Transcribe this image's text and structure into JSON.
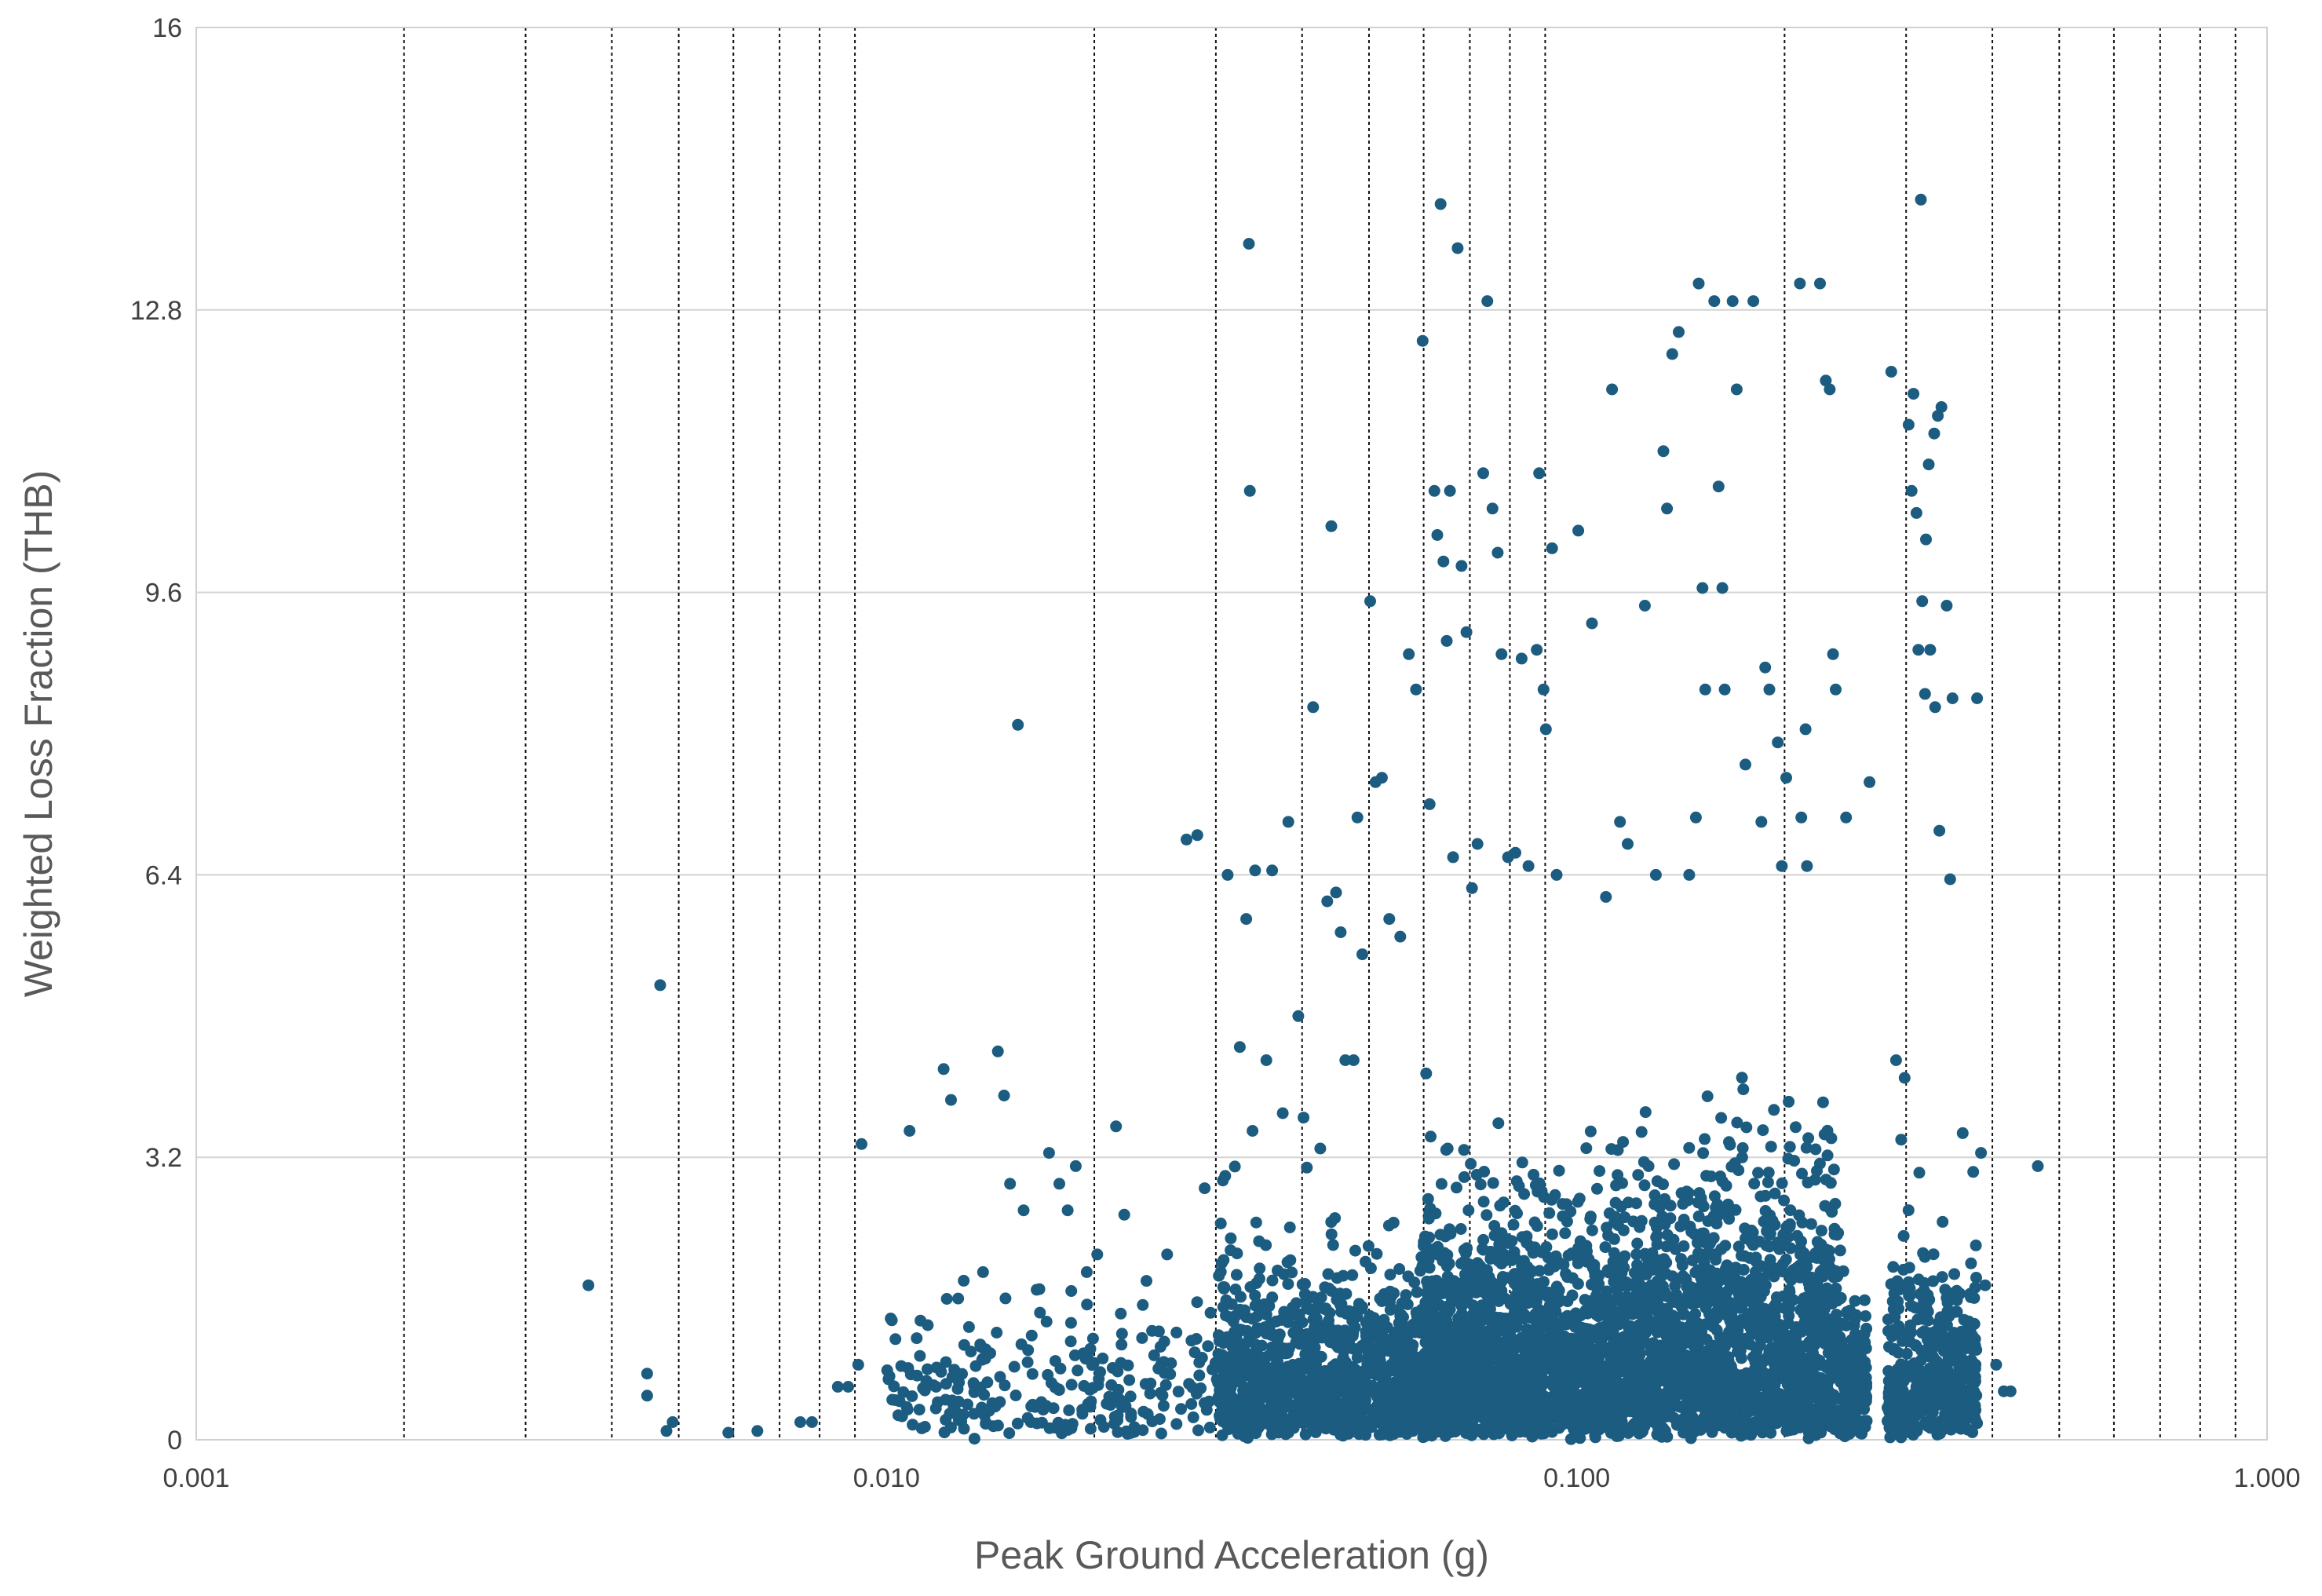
{
  "chart_data": {
    "type": "scatter",
    "xlabel": "Peak Ground Acceleration (g)",
    "ylabel": "Weighted Loss Fraction (THB)",
    "x_scale": "log",
    "xlim": [
      0.001,
      1.0
    ],
    "ylim": [
      0,
      16
    ],
    "x_ticks": [
      0.001,
      0.01,
      0.1,
      1.0
    ],
    "x_tick_labels": [
      "0.001",
      "0.010",
      "0.100",
      "1.000"
    ],
    "y_ticks": [
      0,
      3.2,
      6.4,
      9.6,
      12.8,
      16
    ],
    "y_tick_labels": [
      "0",
      "3.2",
      "6.4",
      "9.6",
      "12.8",
      "16"
    ],
    "x_minor_gridlines": [
      0.002,
      0.003,
      0.004,
      0.005,
      0.006,
      0.007,
      0.008,
      0.009,
      0.02,
      0.03,
      0.04,
      0.05,
      0.06,
      0.07,
      0.08,
      0.09,
      0.2,
      0.3,
      0.4,
      0.5,
      0.6,
      0.7,
      0.8,
      0.9
    ],
    "x_gridline_style": "dotted",
    "y_grid": true,
    "legend": "none",
    "marker_color": "#1b5c80",
    "points": [
      [
        0.0037,
        1.75
      ],
      [
        0.0045,
        0.75
      ],
      [
        0.0045,
        0.5
      ],
      [
        0.0047,
        5.15
      ],
      [
        0.0048,
        0.1
      ],
      [
        0.0049,
        0.2
      ],
      [
        0.0059,
        0.08
      ],
      [
        0.0065,
        0.1
      ],
      [
        0.0075,
        0.2
      ],
      [
        0.0078,
        0.2
      ],
      [
        0.0085,
        0.6
      ],
      [
        0.0088,
        0.6
      ],
      [
        0.0091,
        0.85
      ],
      [
        0.0092,
        3.35
      ],
      [
        0.0108,
        3.5
      ],
      [
        0.0112,
        1.35
      ],
      [
        0.0121,
        4.2
      ],
      [
        0.0124,
        3.85
      ],
      [
        0.0118,
        0.6
      ],
      [
        0.0127,
        1.6
      ],
      [
        0.0131,
        0.4
      ],
      [
        0.0138,
        1.9
      ],
      [
        0.0145,
        4.4
      ],
      [
        0.0148,
        3.9
      ],
      [
        0.0151,
        2.9
      ],
      [
        0.0155,
        8.1
      ],
      [
        0.0158,
        2.6
      ],
      [
        0.0165,
        1.7
      ],
      [
        0.0172,
        3.25
      ],
      [
        0.0178,
        2.9
      ],
      [
        0.0183,
        2.6
      ],
      [
        0.0188,
        3.1
      ],
      [
        0.0195,
        1.9
      ],
      [
        0.0202,
        2.1
      ],
      [
        0.0215,
        3.55
      ],
      [
        0.0221,
        2.55
      ],
      [
        0.0238,
        1.8
      ],
      [
        0.0255,
        2.1
      ],
      [
        0.0272,
        6.8
      ],
      [
        0.0282,
        6.85
      ],
      [
        0.0289,
        2.85
      ],
      [
        0.0305,
        2.45
      ],
      [
        0.0312,
        6.4
      ],
      [
        0.0325,
        4.45
      ],
      [
        0.0332,
        5.9
      ],
      [
        0.0335,
        13.55
      ],
      [
        0.0336,
        10.75
      ],
      [
        0.0339,
        3.5
      ],
      [
        0.0342,
        6.45
      ],
      [
        0.0355,
        4.3
      ],
      [
        0.0362,
        6.45
      ],
      [
        0.0375,
        3.7
      ],
      [
        0.0382,
        7.0
      ],
      [
        0.0395,
        4.8
      ],
      [
        0.0402,
        3.65
      ],
      [
        0.0415,
        8.3
      ],
      [
        0.0425,
        3.3
      ],
      [
        0.0435,
        6.1
      ],
      [
        0.0441,
        10.35
      ],
      [
        0.0448,
        6.2
      ],
      [
        0.0455,
        5.75
      ],
      [
        0.0462,
        4.3
      ],
      [
        0.0475,
        4.3
      ],
      [
        0.0481,
        7.05
      ],
      [
        0.0489,
        5.5
      ],
      [
        0.0502,
        9.5
      ],
      [
        0.0511,
        7.45
      ],
      [
        0.0522,
        7.5
      ],
      [
        0.0535,
        5.9
      ],
      [
        0.0555,
        5.7
      ],
      [
        0.0571,
        8.9
      ],
      [
        0.0585,
        8.5
      ],
      [
        0.0598,
        12.45
      ],
      [
        0.0605,
        4.15
      ],
      [
        0.0612,
        7.2
      ],
      [
        0.0622,
        10.75
      ],
      [
        0.0628,
        10.25
      ],
      [
        0.0635,
        14.0
      ],
      [
        0.0641,
        9.95
      ],
      [
        0.0648,
        9.05
      ],
      [
        0.0655,
        10.75
      ],
      [
        0.0662,
        6.6
      ],
      [
        0.0672,
        13.5
      ],
      [
        0.0681,
        9.9
      ],
      [
        0.0692,
        9.15
      ],
      [
        0.0705,
        6.25
      ],
      [
        0.0718,
        6.75
      ],
      [
        0.0732,
        10.95
      ],
      [
        0.0742,
        12.9
      ],
      [
        0.0755,
        10.55
      ],
      [
        0.0768,
        10.05
      ],
      [
        0.0778,
        8.9
      ],
      [
        0.0795,
        6.6
      ],
      [
        0.0815,
        6.65
      ],
      [
        0.0832,
        8.85
      ],
      [
        0.0851,
        6.5
      ],
      [
        0.0875,
        8.95
      ],
      [
        0.0882,
        10.95
      ],
      [
        0.0895,
        8.5
      ],
      [
        0.0902,
        8.05
      ],
      [
        0.0921,
        10.1
      ],
      [
        0.0935,
        6.4
      ],
      [
        0.1005,
        10.3
      ],
      [
        0.1052,
        9.25
      ],
      [
        0.1102,
        6.15
      ],
      [
        0.1125,
        11.9
      ],
      [
        0.1155,
        7.0
      ],
      [
        0.1185,
        6.75
      ],
      [
        0.1255,
        9.45
      ],
      [
        0.1302,
        6.4
      ],
      [
        0.1335,
        11.2
      ],
      [
        0.1351,
        10.55
      ],
      [
        0.1375,
        12.3
      ],
      [
        0.1405,
        12.55
      ],
      [
        0.1455,
        6.4
      ],
      [
        0.1488,
        7.05
      ],
      [
        0.1502,
        13.1
      ],
      [
        0.1521,
        9.65
      ],
      [
        0.1535,
        8.5
      ],
      [
        0.1582,
        12.9
      ],
      [
        0.1605,
        10.8
      ],
      [
        0.1625,
        9.65
      ],
      [
        0.1638,
        8.5
      ],
      [
        0.1682,
        12.9
      ],
      [
        0.1705,
        11.9
      ],
      [
        0.1755,
        7.65
      ],
      [
        0.1802,
        12.9
      ],
      [
        0.1851,
        7.0
      ],
      [
        0.1875,
        8.75
      ],
      [
        0.1901,
        8.5
      ],
      [
        0.1955,
        7.9
      ],
      [
        0.1982,
        6.5
      ],
      [
        0.2011,
        7.5
      ],
      [
        0.2105,
        13.1
      ],
      [
        0.2115,
        7.05
      ],
      [
        0.2145,
        8.05
      ],
      [
        0.2155,
        6.5
      ],
      [
        0.2251,
        13.1
      ],
      [
        0.2295,
        12.0
      ],
      [
        0.2325,
        11.9
      ],
      [
        0.2351,
        8.9
      ],
      [
        0.2372,
        8.5
      ],
      [
        0.2455,
        7.05
      ],
      [
        0.2655,
        7.45
      ],
      [
        0.2855,
        12.1
      ],
      [
        0.2901,
        4.3
      ],
      [
        0.2951,
        3.4
      ],
      [
        0.2985,
        4.1
      ],
      [
        0.3025,
        11.5
      ],
      [
        0.3055,
        10.75
      ],
      [
        0.3075,
        11.85
      ],
      [
        0.3105,
        10.5
      ],
      [
        0.3125,
        8.95
      ],
      [
        0.3151,
        14.05
      ],
      [
        0.3165,
        9.5
      ],
      [
        0.3195,
        8.45
      ],
      [
        0.3205,
        10.2
      ],
      [
        0.3235,
        11.05
      ],
      [
        0.3251,
        8.95
      ],
      [
        0.3295,
        11.4
      ],
      [
        0.3305,
        8.3
      ],
      [
        0.3335,
        11.6
      ],
      [
        0.3352,
        6.9
      ],
      [
        0.3375,
        11.7
      ],
      [
        0.3435,
        9.45
      ],
      [
        0.3475,
        6.35
      ],
      [
        0.3502,
        8.4
      ],
      [
        0.3555,
        1.45
      ],
      [
        0.3801,
        8.4
      ],
      [
        0.3851,
        3.25
      ],
      [
        0.3905,
        1.75
      ],
      [
        0.4051,
        0.85
      ],
      [
        0.4155,
        0.55
      ],
      [
        0.4251,
        0.55
      ],
      [
        0.4655,
        3.1
      ]
    ]
  }
}
